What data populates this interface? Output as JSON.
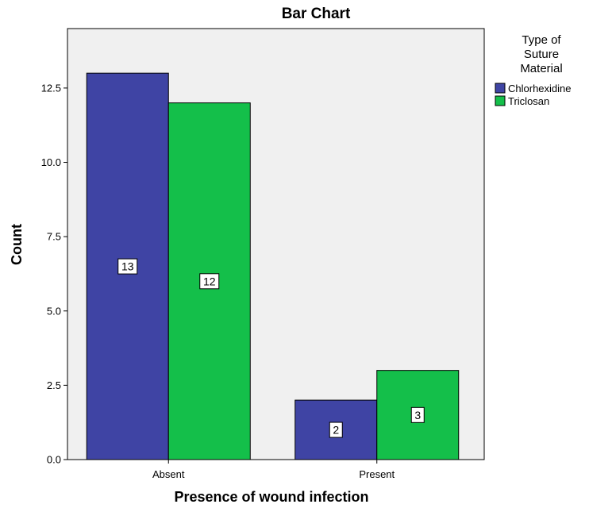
{
  "chart_data": {
    "type": "bar",
    "title": "Bar Chart",
    "xlabel": "Presence of wound infection",
    "ylabel": "Count",
    "categories": [
      "Absent",
      "Present"
    ],
    "series": [
      {
        "name": "Chlorhexidine",
        "values": [
          13,
          2
        ],
        "color": "#3f44a4"
      },
      {
        "name": "Triclosan",
        "values": [
          12,
          3
        ],
        "color": "#14bf4a"
      }
    ],
    "ylim": [
      0,
      14.5
    ],
    "yticks": [
      0,
      2.5,
      5,
      7.5,
      10,
      12.5
    ],
    "ytick_labels": [
      "0.0",
      "2.5",
      "5.0",
      "7.5",
      "10.0",
      "12.5"
    ],
    "legend_title": [
      "Type of",
      "Suture",
      "Material"
    ],
    "legend_position": "right",
    "plot_background": "#f0f0f0",
    "grid": false,
    "data_labels": true
  }
}
